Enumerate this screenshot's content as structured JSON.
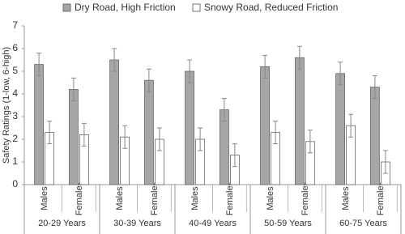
{
  "chart_data": {
    "type": "bar",
    "y_label": "Safety Ratings (1-low, 6-high)",
    "categories": [
      "Males",
      "Females",
      "Males",
      "Females",
      "Males",
      "Females",
      "Males",
      "Females",
      "Males",
      "Females"
    ],
    "groups": [
      "20-29 Years",
      "30-39 Years",
      "40-49 Years",
      "50-59 Years",
      "60-75 Years"
    ],
    "series": [
      {
        "name": "Dry Road, High Friction",
        "color": "#a6a6a6",
        "values": [
          5.3,
          4.2,
          5.5,
          4.6,
          5.0,
          3.3,
          5.2,
          5.6,
          4.9,
          4.3
        ],
        "errors": [
          0.5,
          0.5,
          0.5,
          0.5,
          0.5,
          0.5,
          0.5,
          0.5,
          0.5,
          0.5
        ]
      },
      {
        "name": "Snowy Road, Reduced Friction",
        "color": "#ffffff",
        "values": [
          2.3,
          2.2,
          2.1,
          2.0,
          2.0,
          1.3,
          2.3,
          1.9,
          2.6,
          1.0
        ],
        "errors": [
          0.5,
          0.5,
          0.5,
          0.5,
          0.5,
          0.5,
          0.5,
          0.5,
          0.5,
          0.5
        ]
      }
    ],
    "ylim": [
      0,
      7
    ],
    "yticks": [
      0,
      1,
      2,
      3,
      4,
      5,
      6,
      7
    ],
    "legend": "top"
  }
}
